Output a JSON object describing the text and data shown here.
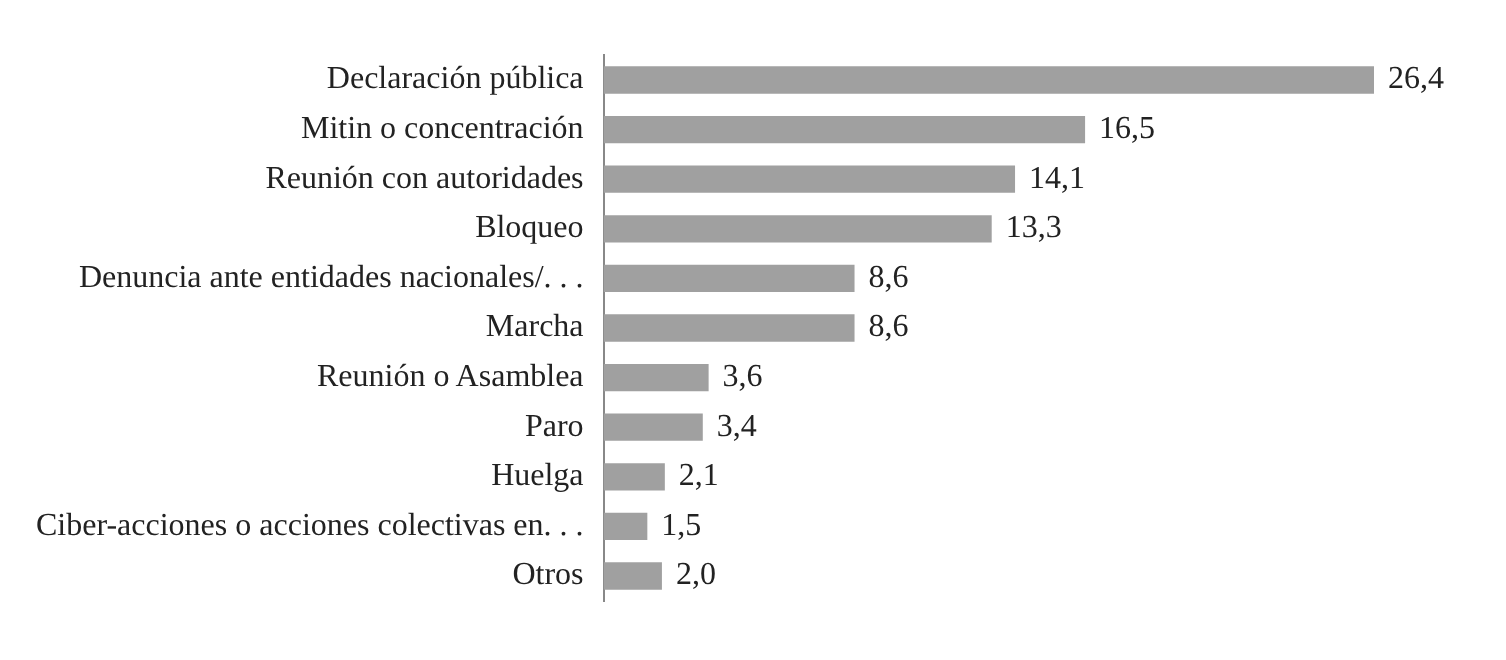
{
  "chart_data": {
    "type": "bar",
    "orientation": "horizontal",
    "categories": [
      "Declaración pública",
      "Mitin o concentración",
      "Reunión con autoridades",
      "Bloqueo",
      "Denuncia ante entidades nacionales/. . .",
      "Marcha",
      "Reunión o Asamblea",
      "Paro",
      "Huelga",
      "Ciber-acciones o acciones colectivas en. . .",
      "Otros"
    ],
    "values": [
      26.4,
      16.5,
      14.1,
      13.3,
      8.6,
      8.6,
      3.6,
      3.4,
      2.1,
      1.5,
      2.0
    ],
    "value_labels": [
      "26,4",
      "16,5",
      "14,1",
      "13,3",
      "8,6",
      "8,6",
      "3,6",
      "3,4",
      "2,1",
      "1,5",
      "2,0"
    ],
    "color": "#a0a0a0",
    "xlim": [
      0,
      26.4
    ],
    "tick_labels": "y"
  }
}
